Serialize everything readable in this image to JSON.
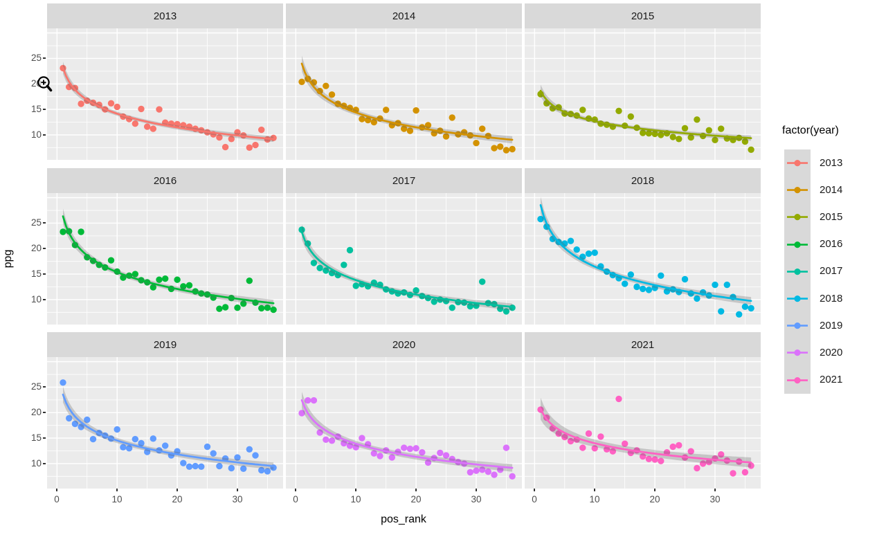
{
  "figure": {
    "x_axis_label": "pos_rank",
    "y_axis_label": "ppg",
    "x_ticks": [
      0,
      10,
      20,
      30
    ],
    "y_ticks": [
      25,
      20,
      15,
      10
    ],
    "colors": {
      "panel_background": "#EBEBEB",
      "strip_background": "#D9D9D9",
      "gridline": "#FFFFFF",
      "axis_text": "#4D4D4D",
      "ribbon": "rgba(96,96,96,0.27)"
    },
    "legend": {
      "title": "factor(year)",
      "entries": [
        {
          "label": "2013",
          "color": "#F8766D"
        },
        {
          "label": "2014",
          "color": "#D39200"
        },
        {
          "label": "2015",
          "color": "#93AA00"
        },
        {
          "label": "2016",
          "color": "#00BA38"
        },
        {
          "label": "2017",
          "color": "#00C19F"
        },
        {
          "label": "2018",
          "color": "#00B9E3"
        },
        {
          "label": "2019",
          "color": "#619CFF"
        },
        {
          "label": "2020",
          "color": "#DB72FB"
        },
        {
          "label": "2021",
          "color": "#FF61C3"
        }
      ]
    }
  },
  "chart_data": {
    "type": "scatter",
    "facet_variable": "factor(year)",
    "facets": [
      "2013",
      "2014",
      "2015",
      "2016",
      "2017",
      "2018",
      "2019",
      "2020",
      "2021"
    ],
    "xlabel": "pos_rank",
    "ylabel": "ppg",
    "x_ticks": [
      0,
      10,
      20,
      30
    ],
    "y_ticks": [
      25,
      20,
      15,
      10
    ],
    "xlim": [
      0,
      37
    ],
    "ylim": [
      5,
      31
    ],
    "grid": true,
    "legend_position": "right",
    "smoother": "logarithmic trend line with 95% confidence ribbon per facet",
    "x": [
      1,
      2,
      3,
      4,
      5,
      6,
      7,
      8,
      9,
      10,
      11,
      12,
      13,
      14,
      15,
      16,
      17,
      18,
      19,
      20,
      21,
      22,
      23,
      24,
      25,
      26,
      27,
      28,
      29,
      30,
      31,
      32,
      33,
      34,
      35,
      36
    ],
    "series": [
      {
        "name": "2013",
        "color": "#F8766D",
        "y": [
          23.1,
          19.4,
          19.2,
          16.1,
          16.7,
          16.3,
          15.9,
          15.0,
          16.2,
          15.5,
          13.6,
          13.1,
          12.2,
          15.1,
          11.6,
          11.2,
          15.0,
          12.4,
          12.2,
          12.1,
          11.9,
          11.6,
          11.2,
          10.9,
          10.5,
          10.1,
          9.5,
          7.6,
          9.2,
          10.5,
          9.9,
          7.5,
          8.0,
          11.0,
          9.1,
          9.4
        ]
      },
      {
        "name": "2014",
        "color": "#D39200",
        "y": [
          20.4,
          21.0,
          20.3,
          18.6,
          19.6,
          17.9,
          16.1,
          15.7,
          15.3,
          14.9,
          13.1,
          12.9,
          12.5,
          13.2,
          14.9,
          11.9,
          12.3,
          11.2,
          10.8,
          14.8,
          11.5,
          11.9,
          10.3,
          10.8,
          9.7,
          13.4,
          10.1,
          10.5,
          9.9,
          8.4,
          11.2,
          9.8,
          7.4,
          7.7,
          7.0,
          7.2
        ]
      },
      {
        "name": "2015",
        "color": "#93AA00",
        "y": [
          18.0,
          16.2,
          15.2,
          15.4,
          14.2,
          14.1,
          13.8,
          14.9,
          13.2,
          13.0,
          12.2,
          12.0,
          11.6,
          14.7,
          11.8,
          13.6,
          11.4,
          10.4,
          10.3,
          10.2,
          10.0,
          10.3,
          9.6,
          9.2,
          11.3,
          9.5,
          13.0,
          9.8,
          10.9,
          9.0,
          11.2,
          9.3,
          9.0,
          9.4,
          8.7,
          7.1
        ]
      },
      {
        "name": "2016",
        "color": "#00BA38",
        "y": [
          23.3,
          23.4,
          20.7,
          23.3,
          18.3,
          17.6,
          16.8,
          16.3,
          17.7,
          15.5,
          14.3,
          14.7,
          15.0,
          13.8,
          13.4,
          12.4,
          13.9,
          14.1,
          12.1,
          13.9,
          12.6,
          12.8,
          11.6,
          11.2,
          11.0,
          10.4,
          8.2,
          8.5,
          10.3,
          8.4,
          9.2,
          13.7,
          9.4,
          8.3,
          8.4,
          8.0
        ]
      },
      {
        "name": "2017",
        "color": "#00C19F",
        "y": [
          23.7,
          21.0,
          17.2,
          16.2,
          15.7,
          15.2,
          14.8,
          16.8,
          19.7,
          12.7,
          13.0,
          12.6,
          13.3,
          12.9,
          12.0,
          11.6,
          11.2,
          11.4,
          10.9,
          11.8,
          10.7,
          10.3,
          9.6,
          10.0,
          9.7,
          8.4,
          9.5,
          9.4,
          8.7,
          8.8,
          13.5,
          9.3,
          9.1,
          8.2,
          7.7,
          8.4
        ]
      },
      {
        "name": "2018",
        "color": "#00B9E3",
        "y": [
          25.8,
          24.3,
          21.9,
          21.3,
          21.0,
          21.5,
          19.8,
          18.4,
          19.0,
          19.2,
          16.5,
          15.5,
          14.8,
          14.2,
          13.1,
          14.9,
          12.5,
          12.1,
          11.9,
          12.3,
          14.7,
          11.6,
          12.0,
          11.5,
          14.0,
          11.2,
          10.2,
          11.4,
          10.8,
          12.9,
          7.7,
          12.9,
          10.5,
          7.1,
          8.6,
          8.3
        ]
      },
      {
        "name": "2019",
        "color": "#619CFF",
        "y": [
          25.9,
          18.9,
          17.8,
          17.2,
          18.6,
          14.8,
          16.0,
          15.5,
          14.9,
          16.7,
          13.2,
          13.0,
          14.8,
          14.0,
          12.3,
          14.9,
          12.6,
          13.5,
          11.6,
          12.4,
          10.1,
          9.4,
          9.5,
          9.4,
          13.3,
          12.0,
          9.5,
          11.0,
          9.1,
          11.2,
          9.0,
          12.8,
          11.6,
          8.7,
          8.5,
          9.2
        ]
      },
      {
        "name": "2020",
        "color": "#DB72FB",
        "y": [
          19.9,
          22.4,
          22.4,
          16.1,
          14.7,
          14.5,
          15.3,
          14.0,
          13.5,
          13.2,
          15.0,
          13.8,
          12.0,
          11.5,
          12.6,
          11.2,
          12.3,
          13.1,
          12.9,
          13.0,
          12.2,
          10.2,
          11.1,
          12.1,
          11.6,
          10.9,
          10.3,
          10.0,
          8.3,
          8.6,
          8.8,
          8.4,
          7.8,
          8.8,
          13.1,
          7.5
        ]
      },
      {
        "name": "2021",
        "color": "#FF61C3",
        "y": [
          20.6,
          19.0,
          16.9,
          15.9,
          15.2,
          14.4,
          14.7,
          13.1,
          15.9,
          13.0,
          15.3,
          12.8,
          12.4,
          22.7,
          13.9,
          12.1,
          12.6,
          11.4,
          10.9,
          10.8,
          10.5,
          12.2,
          13.3,
          13.6,
          11.2,
          12.4,
          9.1,
          10.0,
          10.3,
          11.0,
          11.8,
          10.6,
          8.1,
          10.4,
          8.3,
          9.6
        ]
      }
    ]
  }
}
